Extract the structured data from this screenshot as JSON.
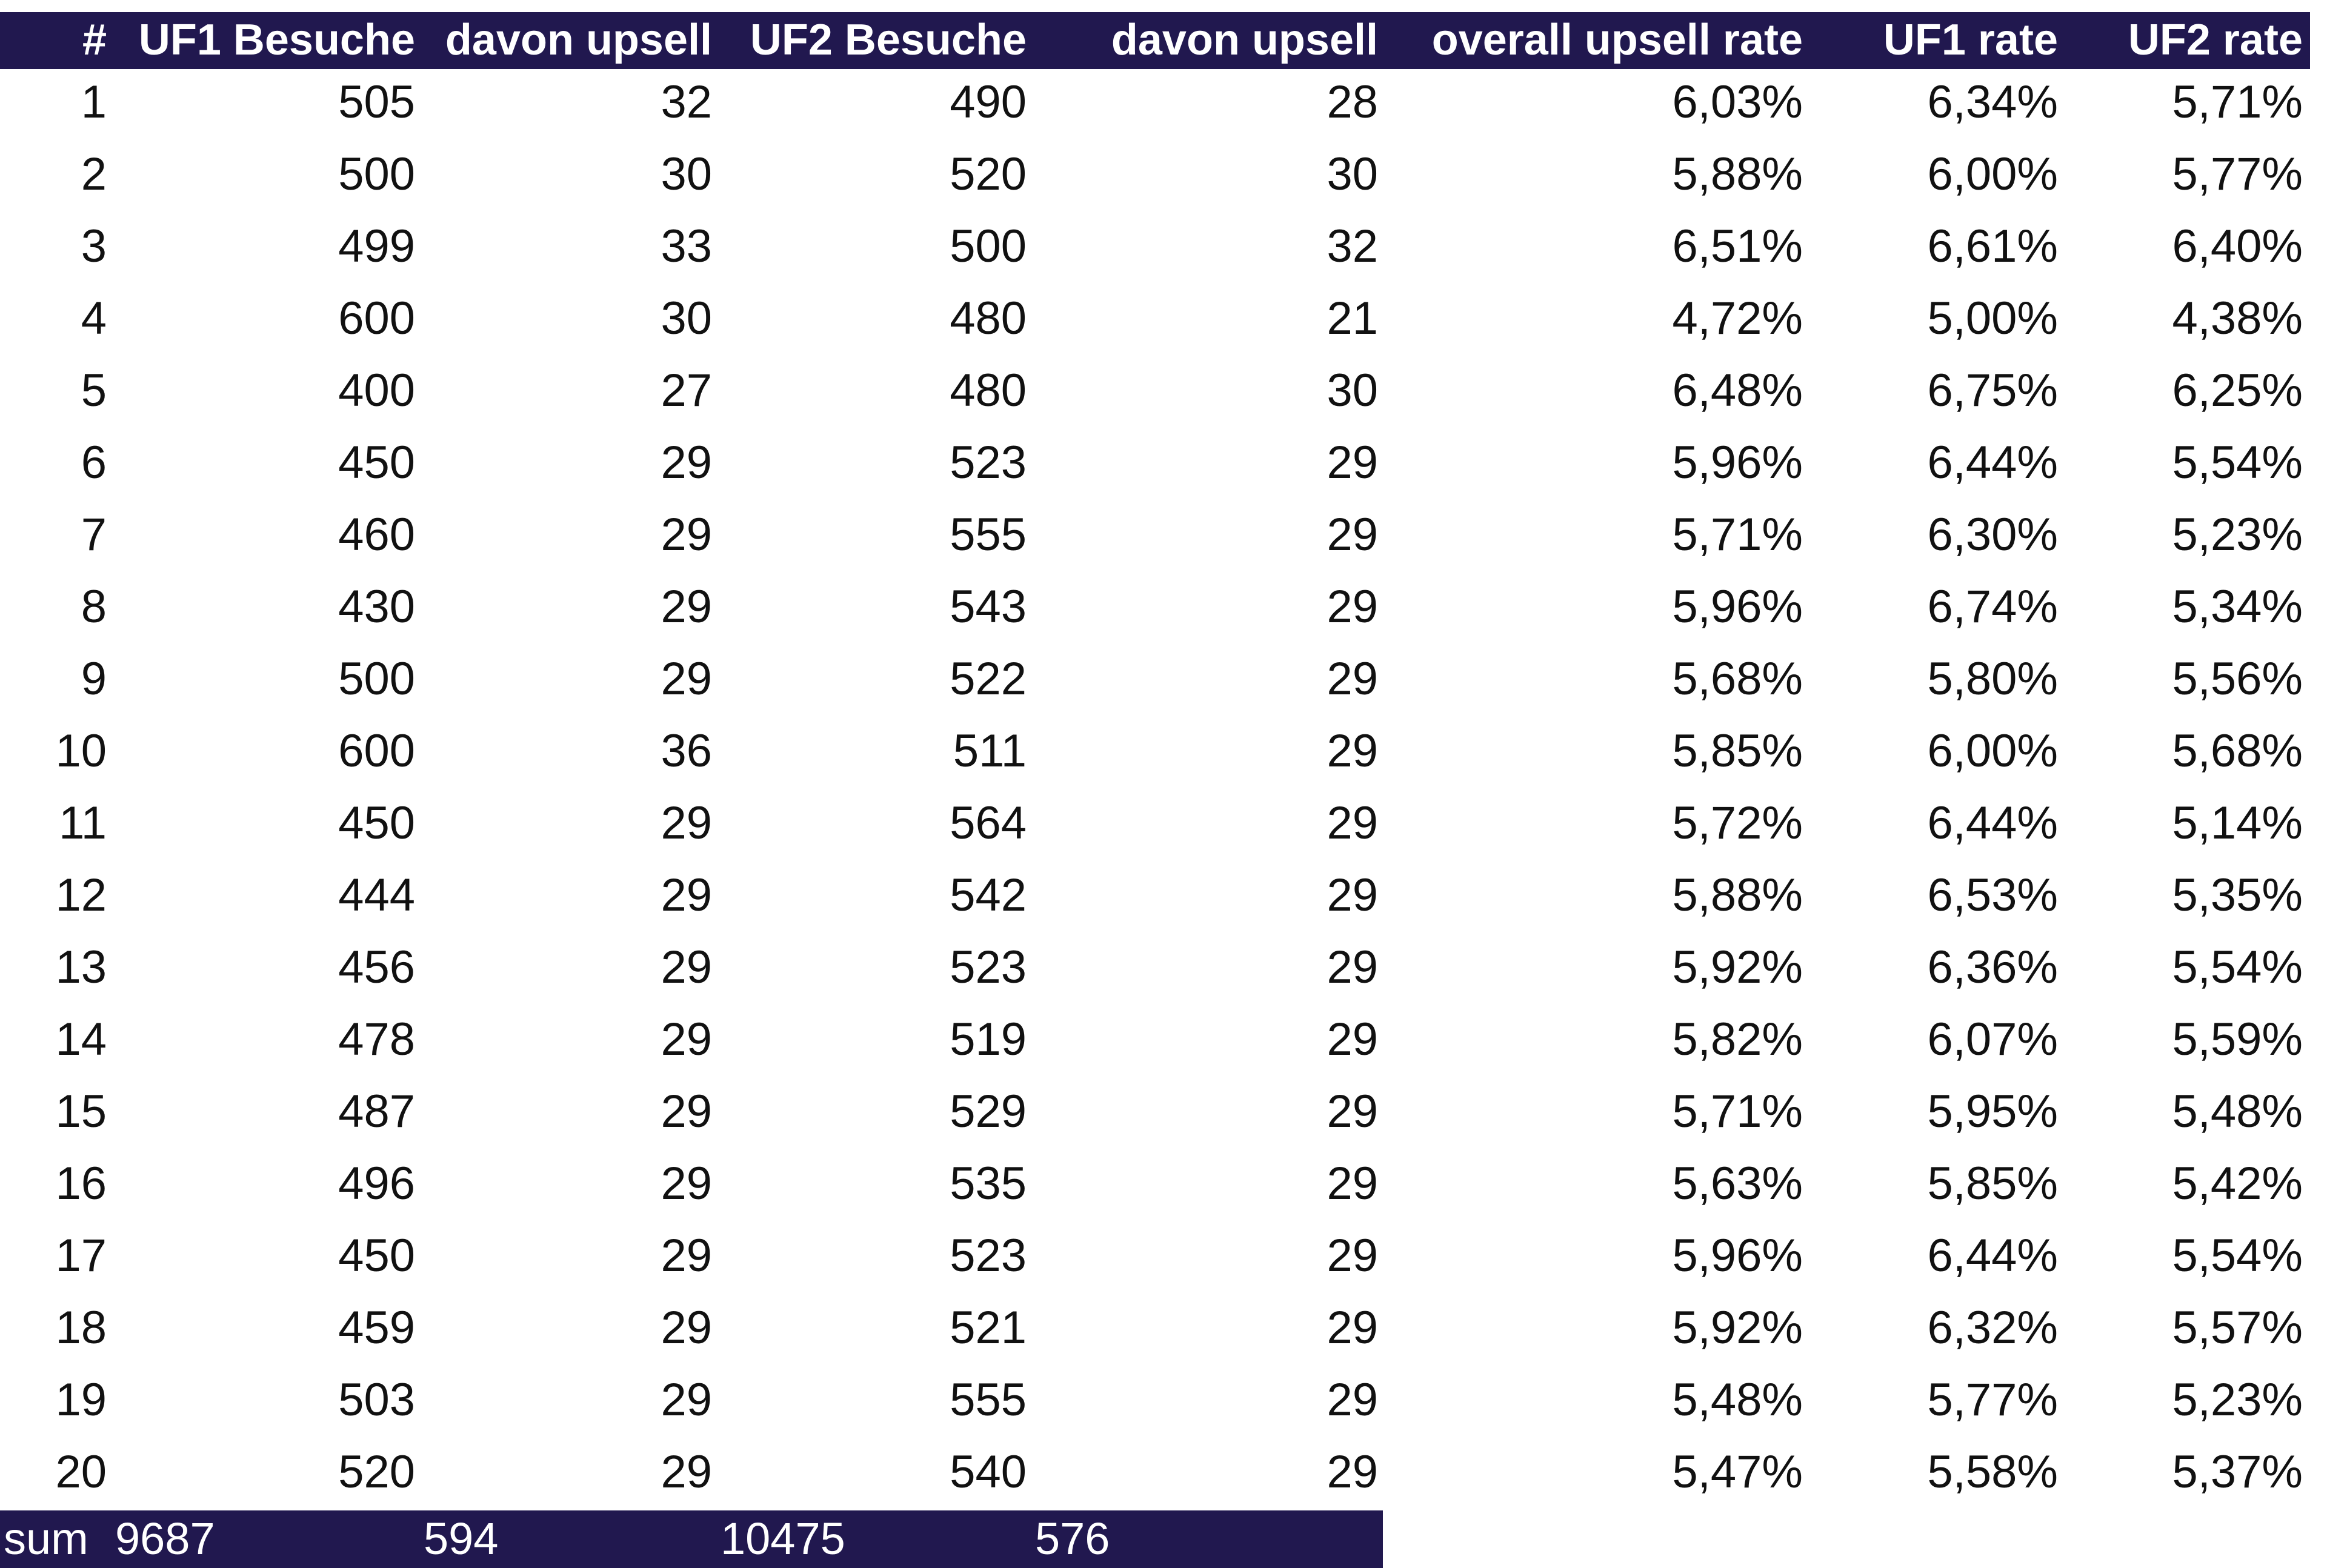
{
  "table": {
    "headers": [
      "#",
      "UF1 Besuche",
      "davon upsell",
      "UF2 Besuche",
      "davon upsell",
      "overall upsell rate",
      "UF1 rate",
      "UF2 rate"
    ],
    "rows": [
      [
        "1",
        "505",
        "32",
        "490",
        "28",
        "6,03%",
        "6,34%",
        "5,71%"
      ],
      [
        "2",
        "500",
        "30",
        "520",
        "30",
        "5,88%",
        "6,00%",
        "5,77%"
      ],
      [
        "3",
        "499",
        "33",
        "500",
        "32",
        "6,51%",
        "6,61%",
        "6,40%"
      ],
      [
        "4",
        "600",
        "30",
        "480",
        "21",
        "4,72%",
        "5,00%",
        "4,38%"
      ],
      [
        "5",
        "400",
        "27",
        "480",
        "30",
        "6,48%",
        "6,75%",
        "6,25%"
      ],
      [
        "6",
        "450",
        "29",
        "523",
        "29",
        "5,96%",
        "6,44%",
        "5,54%"
      ],
      [
        "7",
        "460",
        "29",
        "555",
        "29",
        "5,71%",
        "6,30%",
        "5,23%"
      ],
      [
        "8",
        "430",
        "29",
        "543",
        "29",
        "5,96%",
        "6,74%",
        "5,34%"
      ],
      [
        "9",
        "500",
        "29",
        "522",
        "29",
        "5,68%",
        "5,80%",
        "5,56%"
      ],
      [
        "10",
        "600",
        "36",
        "511",
        "29",
        "5,85%",
        "6,00%",
        "5,68%"
      ],
      [
        "11",
        "450",
        "29",
        "564",
        "29",
        "5,72%",
        "6,44%",
        "5,14%"
      ],
      [
        "12",
        "444",
        "29",
        "542",
        "29",
        "5,88%",
        "6,53%",
        "5,35%"
      ],
      [
        "13",
        "456",
        "29",
        "523",
        "29",
        "5,92%",
        "6,36%",
        "5,54%"
      ],
      [
        "14",
        "478",
        "29",
        "519",
        "29",
        "5,82%",
        "6,07%",
        "5,59%"
      ],
      [
        "15",
        "487",
        "29",
        "529",
        "29",
        "5,71%",
        "5,95%",
        "5,48%"
      ],
      [
        "16",
        "496",
        "29",
        "535",
        "29",
        "5,63%",
        "5,85%",
        "5,42%"
      ],
      [
        "17",
        "450",
        "29",
        "523",
        "29",
        "5,96%",
        "6,44%",
        "5,54%"
      ],
      [
        "18",
        "459",
        "29",
        "521",
        "29",
        "5,92%",
        "6,32%",
        "5,57%"
      ],
      [
        "19",
        "503",
        "29",
        "555",
        "29",
        "5,48%",
        "5,77%",
        "5,23%"
      ],
      [
        "20",
        "520",
        "29",
        "540",
        "29",
        "5,47%",
        "5,58%",
        "5,37%"
      ]
    ],
    "sum_row": [
      "sum",
      "9687",
      "594",
      "10475",
      "576"
    ]
  }
}
